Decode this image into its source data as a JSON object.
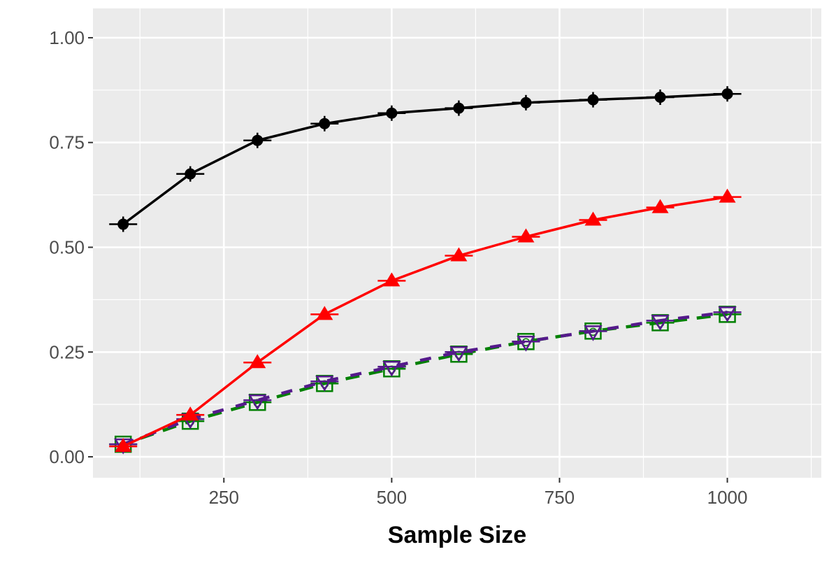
{
  "chart_data": {
    "type": "line",
    "title": "",
    "xlabel": "Sample Size",
    "ylabel": "",
    "xlim": [
      55,
      1140
    ],
    "ylim": [
      -0.05,
      1.07
    ],
    "x_ticks": [
      250,
      500,
      750,
      1000
    ],
    "y_ticks": [
      0.0,
      0.25,
      0.5,
      0.75,
      1.0
    ],
    "x_tick_labels": [
      "250",
      "500",
      "750",
      "1000"
    ],
    "y_tick_labels": [
      "0.00",
      "0.25",
      "0.50",
      "0.75",
      "1.00"
    ],
    "grid": true,
    "legend": "none",
    "panel_background": "#ebebeb",
    "x": [
      100,
      200,
      300,
      400,
      500,
      600,
      700,
      800,
      900,
      1000
    ],
    "series": [
      {
        "color": "#000000",
        "marker": "filled-circle-plus",
        "line": "solid",
        "values": [
          0.555,
          0.675,
          0.755,
          0.795,
          0.82,
          0.832,
          0.845,
          0.852,
          0.858,
          0.866
        ]
      },
      {
        "color": "#ff0000",
        "marker": "filled-triangle",
        "line": "solid",
        "values": [
          0.025,
          0.1,
          0.225,
          0.34,
          0.42,
          0.48,
          0.525,
          0.565,
          0.595,
          0.62
        ]
      },
      {
        "color": "#551a8b",
        "marker": "triangle-down-open",
        "line": "dashed",
        "values": [
          0.03,
          0.09,
          0.135,
          0.18,
          0.215,
          0.25,
          0.275,
          0.3,
          0.325,
          0.345
        ]
      },
      {
        "color": "#008000",
        "marker": "square-open",
        "line": "dashed",
        "values": [
          0.03,
          0.085,
          0.13,
          0.175,
          0.21,
          0.245,
          0.275,
          0.3,
          0.32,
          0.34
        ]
      }
    ]
  }
}
